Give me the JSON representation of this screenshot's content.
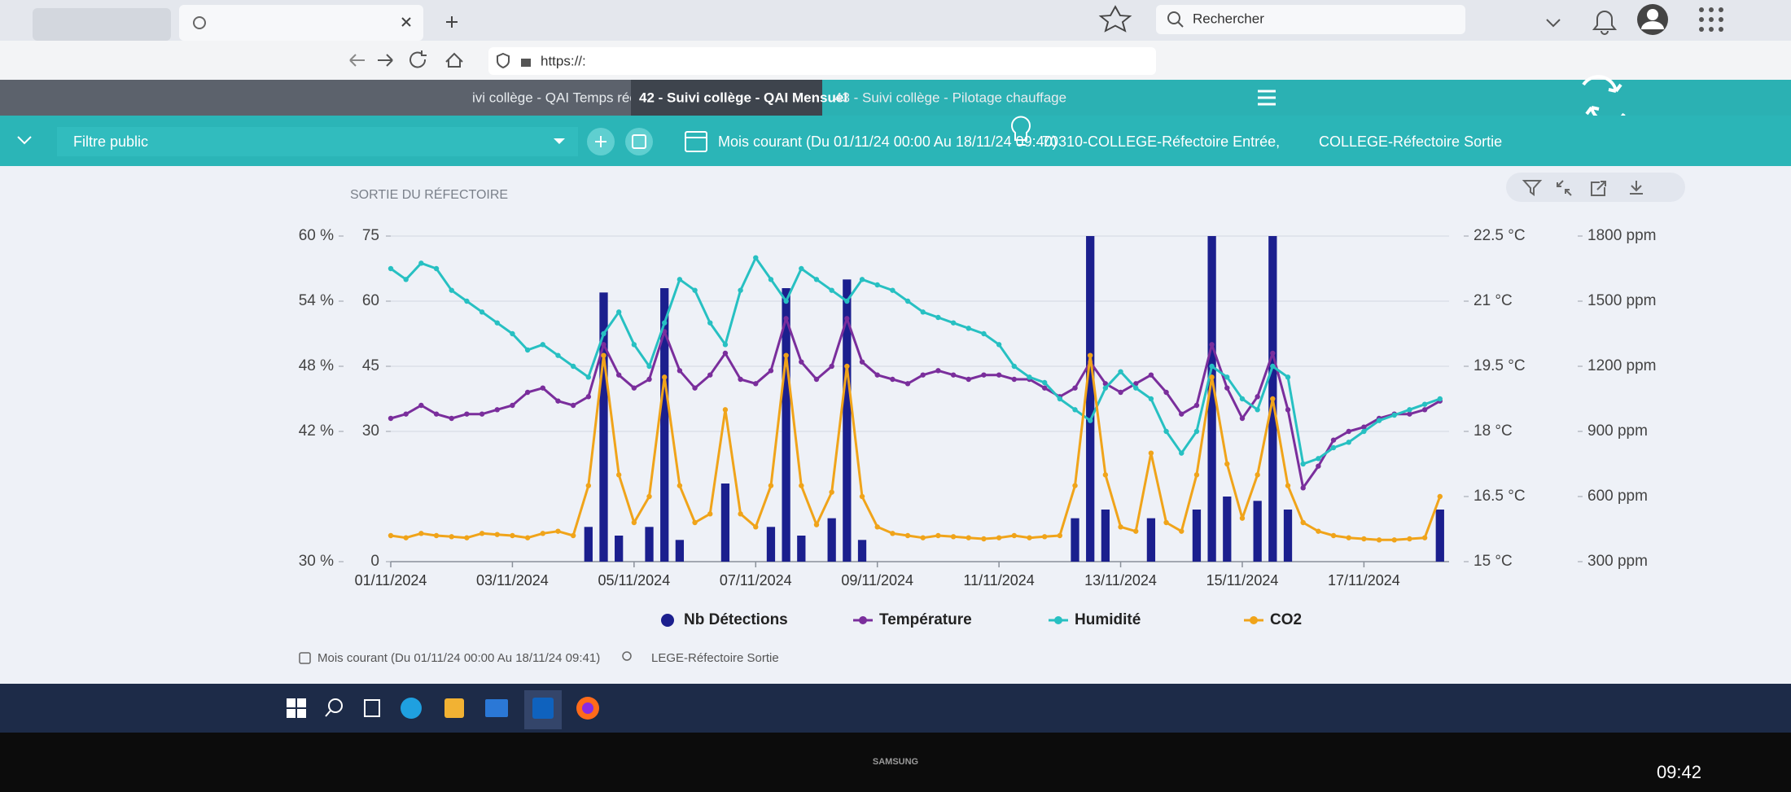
{
  "browser": {
    "search_placeholder": "Rechercher",
    "url": "https://:"
  },
  "app": {
    "tabs": [
      "ivi collège - QAI Temps réel",
      "42 - Suivi collège - QAI Mensuel",
      "43 - Suivi collège - Pilotage chauffage"
    ],
    "filter": "Filtre public",
    "period": "Mois courant (Du 01/11/24 00:00 Au 18/11/24 09:40)",
    "sensors": [
      "70310-COLLEGE-Réfectoire Entrée,",
      "COLLEGE-Réfectoire Sortie"
    ]
  },
  "chart_data": {
    "type": "line",
    "title": "SORTIE DU RÉFECTOIRE",
    "grid": true,
    "x": [
      0,
      0.25,
      0.5,
      0.75,
      1,
      1.25,
      1.5,
      1.75,
      2,
      2.25,
      2.5,
      2.75,
      3,
      3.25,
      3.5,
      3.75,
      4,
      4.25,
      4.5,
      4.75,
      5,
      5.25,
      5.5,
      5.75,
      6,
      6.25,
      6.5,
      6.75,
      7,
      7.25,
      7.5,
      7.75,
      8,
      8.25,
      8.5,
      8.75,
      9,
      9.25,
      9.5,
      9.75,
      10,
      10.25,
      10.5,
      10.75,
      11,
      11.25,
      11.5,
      11.75,
      12,
      12.25,
      12.5,
      12.75,
      13,
      13.25,
      13.5,
      13.75,
      14,
      14.25,
      14.5,
      14.75,
      15,
      15.25,
      15.5,
      15.75,
      16,
      16.25,
      16.5,
      16.75,
      17,
      17.25
    ],
    "xlim": [
      0,
      17.4
    ],
    "xticks": [
      {
        "value": 0,
        "label": "01/11/2024"
      },
      {
        "value": 2,
        "label": "03/11/2024"
      },
      {
        "value": 4,
        "label": "05/11/2024"
      },
      {
        "value": 6,
        "label": "07/11/2024"
      },
      {
        "value": 8,
        "label": "09/11/2024"
      },
      {
        "value": 10,
        "label": "11/11/2024"
      },
      {
        "value": 12,
        "label": "13/11/2024"
      },
      {
        "value": 14,
        "label": "15/11/2024"
      },
      {
        "value": 16,
        "label": "17/11/2024"
      }
    ],
    "ylim": [
      0,
      75
    ],
    "yticks": [
      0,
      30,
      45,
      60,
      75
    ],
    "y2lim": [
      30,
      60
    ],
    "y2ticks": [
      {
        "value": 30,
        "label": "30 %"
      },
      {
        "value": 42,
        "label": "42 %"
      },
      {
        "value": 48,
        "label": "48 %"
      },
      {
        "value": 54,
        "label": "54 %"
      },
      {
        "value": 60,
        "label": "60 %"
      }
    ],
    "y3lim": [
      15,
      22.5
    ],
    "y3ticks": [
      {
        "value": 15,
        "label": "15 °C"
      },
      {
        "value": 16.5,
        "label": "16.5 °C"
      },
      {
        "value": 18,
        "label": "18 °C"
      },
      {
        "value": 19.5,
        "label": "19.5 °C"
      },
      {
        "value": 21,
        "label": "21 °C"
      },
      {
        "value": 22.5,
        "label": "22.5 °C"
      }
    ],
    "y4lim": [
      300,
      1800
    ],
    "y4ticks": [
      {
        "value": 300,
        "label": "300 ppm"
      },
      {
        "value": 600,
        "label": "600 ppm"
      },
      {
        "value": 900,
        "label": "900 ppm"
      },
      {
        "value": 1200,
        "label": "1200 ppm"
      },
      {
        "value": 1500,
        "label": "1500 ppm"
      },
      {
        "value": 1800,
        "label": "1800 ppm"
      }
    ],
    "series": [
      {
        "name": "Nb Détections",
        "type": "bar",
        "axis": "y",
        "color": "#1b1f8e",
        "values": [
          0,
          0,
          0,
          0,
          0,
          0,
          0,
          0,
          0,
          0,
          0,
          0,
          0,
          8,
          62,
          6,
          0,
          8,
          63,
          5,
          0,
          0,
          18,
          0,
          0,
          8,
          63,
          6,
          0,
          10,
          65,
          5,
          0,
          0,
          0,
          0,
          0,
          0,
          0,
          0,
          0,
          0,
          0,
          0,
          0,
          10,
          75,
          12,
          0,
          0,
          10,
          0,
          0,
          12,
          75,
          15,
          0,
          14,
          75,
          12,
          0,
          0,
          0,
          0,
          0,
          0,
          0,
          0,
          0,
          12
        ]
      },
      {
        "name": "Température",
        "type": "line",
        "axis": "y3",
        "color": "#7a2e9c",
        "values": [
          18.3,
          18.4,
          18.6,
          18.4,
          18.3,
          18.4,
          18.4,
          18.5,
          18.6,
          18.9,
          19.0,
          18.7,
          18.6,
          18.8,
          20.0,
          19.3,
          19.0,
          19.2,
          20.3,
          19.4,
          19.0,
          19.3,
          19.8,
          19.2,
          19.1,
          19.4,
          20.6,
          19.6,
          19.2,
          19.5,
          20.6,
          19.6,
          19.3,
          19.2,
          19.1,
          19.3,
          19.4,
          19.3,
          19.2,
          19.3,
          19.3,
          19.2,
          19.2,
          19.0,
          18.8,
          19.0,
          19.6,
          19.1,
          18.9,
          19.1,
          19.3,
          18.9,
          18.4,
          18.6,
          20.0,
          19.0,
          18.3,
          18.8,
          19.8,
          18.5,
          16.7,
          17.2,
          17.8,
          18.0,
          18.1,
          18.3,
          18.4,
          18.4,
          18.5,
          18.7
        ]
      },
      {
        "name": "Humidité",
        "type": "line",
        "axis": "y2",
        "color": "#27c0c2",
        "values": [
          57,
          56,
          57.5,
          57,
          55,
          54,
          53,
          52,
          51,
          49.5,
          50,
          49,
          48,
          47,
          51,
          53,
          50,
          48,
          52,
          56,
          55,
          52,
          50,
          55,
          58,
          56,
          54,
          57,
          56,
          55,
          54,
          56,
          55.5,
          55,
          54,
          53,
          52.5,
          52,
          51.5,
          51,
          50,
          48,
          47,
          46.5,
          45,
          44,
          43,
          46,
          47.5,
          46,
          45,
          42,
          40,
          42,
          48,
          47,
          45,
          44,
          48,
          47,
          39,
          39.5,
          40.5,
          41,
          42,
          43,
          43.5,
          44,
          44.5,
          45
        ]
      },
      {
        "name": "CO2",
        "type": "line",
        "axis": "y4",
        "color": "#f0a41a",
        "values": [
          420,
          410,
          430,
          420,
          415,
          410,
          430,
          425,
          420,
          410,
          430,
          440,
          420,
          650,
          1250,
          700,
          480,
          600,
          1150,
          650,
          480,
          520,
          1000,
          520,
          460,
          650,
          1250,
          650,
          470,
          620,
          1200,
          600,
          460,
          430,
          420,
          410,
          420,
          415,
          410,
          405,
          410,
          420,
          410,
          415,
          420,
          650,
          1250,
          700,
          460,
          440,
          800,
          480,
          440,
          700,
          1150,
          750,
          500,
          700,
          1050,
          650,
          480,
          440,
          420,
          410,
          405,
          400,
          400,
          405,
          410,
          600
        ]
      }
    ]
  },
  "footer": {
    "period": "Mois courant (Du 01/11/24 00:00 Au 18/11/24 09:41)",
    "sensor": "LEGE-Réfectoire Sortie"
  },
  "taskbar": {
    "clock": "09:42"
  },
  "monitor": {
    "brand": "SAMSUNG"
  }
}
